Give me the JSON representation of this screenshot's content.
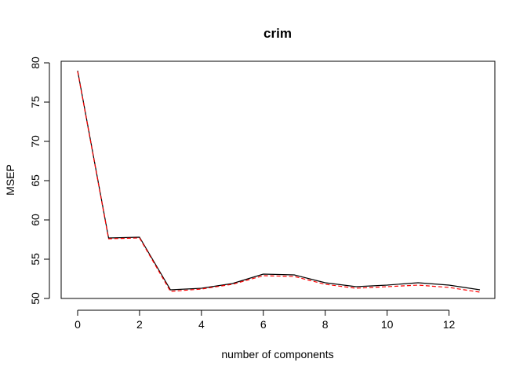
{
  "chart_data": {
    "type": "line",
    "title": "crim",
    "xlabel": "number of components",
    "ylabel": "MSEP",
    "xlim": [
      0,
      13
    ],
    "ylim": [
      50,
      80
    ],
    "x_ticks": [
      0,
      2,
      4,
      6,
      8,
      10,
      12
    ],
    "y_ticks": [
      50,
      55,
      60,
      65,
      70,
      75,
      80
    ],
    "grid": false,
    "legend": "none",
    "x": [
      0,
      1,
      2,
      3,
      4,
      5,
      6,
      7,
      8,
      9,
      10,
      11,
      12,
      13
    ],
    "series": [
      {
        "color": "#000000",
        "dash": "solid",
        "values": [
          79.0,
          57.7,
          57.8,
          51.1,
          51.3,
          51.9,
          53.1,
          53.0,
          52.0,
          51.5,
          51.7,
          52.0,
          51.7,
          51.1
        ]
      },
      {
        "color": "#ff0000",
        "dash": "dashed",
        "values": [
          78.9,
          57.6,
          57.7,
          50.9,
          51.2,
          51.8,
          52.9,
          52.8,
          51.8,
          51.3,
          51.5,
          51.7,
          51.4,
          50.8
        ]
      }
    ]
  }
}
